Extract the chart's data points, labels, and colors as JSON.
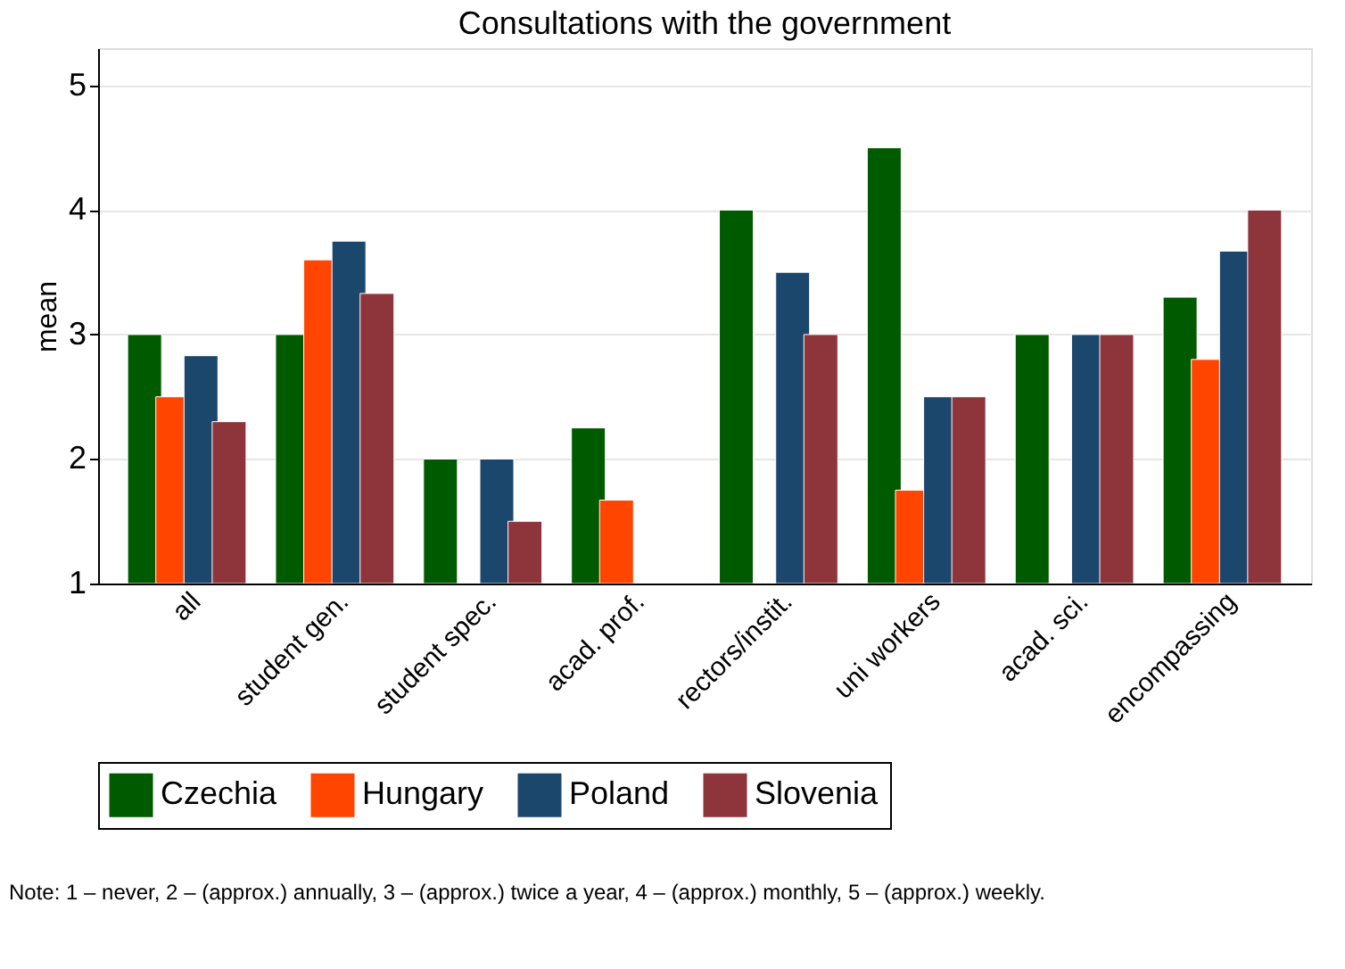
{
  "chart_data": {
    "type": "bar",
    "title": "Consultations with the government",
    "ylabel": "mean",
    "categories": [
      "all",
      "student gen.",
      "student spec.",
      "acad. prof.",
      "rectors/instit.",
      "uni workers",
      "acad. sci.",
      "encompassing"
    ],
    "series": [
      {
        "name": "Czechia",
        "color": "#005a00",
        "values": [
          3,
          3,
          2,
          2.25,
          4,
          4.5,
          3,
          3.3
        ]
      },
      {
        "name": "Hungary",
        "color": "#ff4500",
        "values": [
          2.5,
          3.6,
          null,
          1.67,
          null,
          1.75,
          null,
          2.8
        ]
      },
      {
        "name": "Poland",
        "color": "#1c476d",
        "values": [
          2.83,
          3.75,
          2,
          null,
          3.5,
          2.5,
          3,
          3.67
        ]
      },
      {
        "name": "Slovenia",
        "color": "#8e353c",
        "values": [
          2.3,
          3.33,
          1.5,
          null,
          3,
          2.5,
          3,
          4
        ]
      }
    ],
    "ylim": [
      1,
      5.3
    ],
    "yticks": [
      1,
      2,
      3,
      4,
      5
    ],
    "grid": "y",
    "legend": "bottom",
    "annotations": [
      "Note: 1 – never, 2 – (approx.) annually, 3 – (approx.) twice a year, 4 – (approx.) monthly, 5 – (approx.) weekly."
    ]
  }
}
